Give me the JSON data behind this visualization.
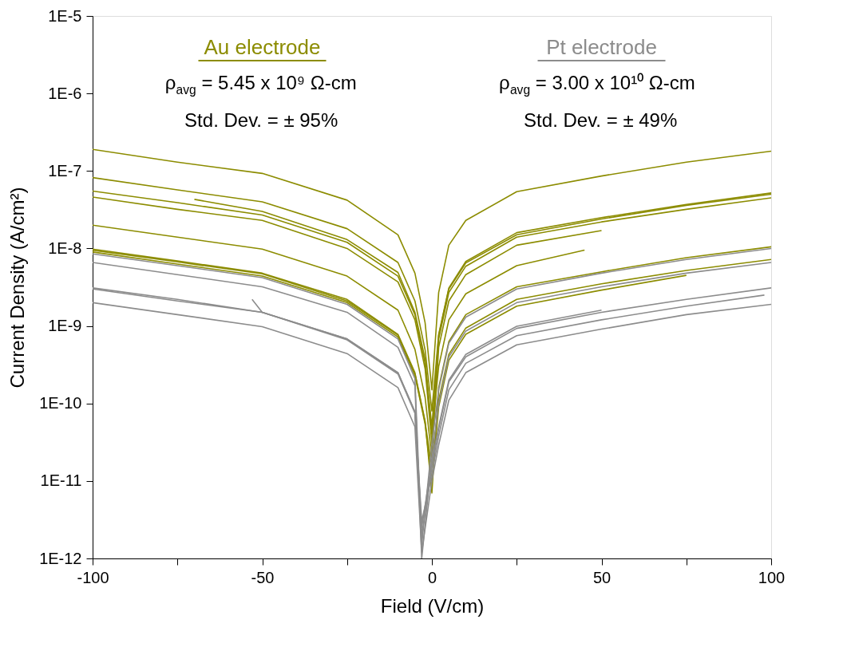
{
  "chart_data": {
    "type": "line",
    "xlabel": "Field (V/cm)",
    "ylabel": "Current Density (A/cm²)",
    "log": "y",
    "grid": false,
    "legend": "top",
    "line_style": "solid",
    "marker": "none",
    "xlim": [
      -100,
      100
    ],
    "xticks": [
      -100,
      {
        "value": -75,
        "label": null
      },
      -50,
      {
        "value": -25,
        "label": null
      },
      0,
      {
        "value": 25,
        "label": null
      },
      50,
      {
        "value": 75,
        "label": null
      },
      100
    ],
    "ylim": [
      1e-12,
      1e-05
    ],
    "yticks": [
      {
        "value": 1e-12,
        "label": "1E-12"
      },
      {
        "value": 1e-11,
        "label": "1E-11"
      },
      {
        "value": 1e-10,
        "label": "1E-10"
      },
      {
        "value": 1e-09,
        "label": "1E-9"
      },
      {
        "value": 1e-08,
        "label": "1E-8"
      },
      {
        "value": 1e-07,
        "label": "1E-7"
      },
      {
        "value": 1e-06,
        "label": "1E-6"
      },
      {
        "value": 1e-05,
        "label": "1E-5"
      }
    ],
    "annotations": [
      "ρ$_{avg}$ = 5.45 x 10⁹ Ω-cm",
      "Std. Dev. = ± 95%",
      "ρ$_{avg}$ = 3.00 x 10¹⁰ Ω-cm",
      "Std. Dev. = ± 49%"
    ],
    "x": [
      -100,
      -75,
      -50,
      -25,
      -10,
      -5,
      -2,
      0,
      2,
      5,
      10,
      25,
      50,
      75,
      100
    ],
    "series": [
      {
        "name": "Au electrode",
        "color": "#8c8c00",
        "values": [
          1.9e-07,
          1.3e-07,
          9.3e-08,
          4.2e-08,
          1.5e-08,
          4.8e-09,
          1.1e-09,
          1.5e-10,
          2.7e-09,
          1.1e-08,
          2.3e-08,
          5.4e-08,
          8.6e-08,
          1.3e-07,
          1.8e-07
        ]
      },
      {
        "color": "#8c8c00",
        "values": [
          8.2e-08,
          5.7e-08,
          4e-08,
          1.8e-08,
          6.6e-09,
          2.1e-09,
          4.9e-10,
          8e-11,
          7.8e-10,
          3.1e-09,
          6.8e-09,
          1.6e-08,
          2.5e-08,
          3.7e-08,
          5.2e-08
        ]
      },
      {
        "color": "#8c8c00",
        "values": [
          5.5e-08,
          3.9e-08,
          2.7e-08,
          1.2e-08,
          4.4e-09,
          1.4e-09,
          3.3e-10,
          5e-11,
          7.5e-10,
          3e-09,
          6.5e-09,
          1.5e-08,
          2.4e-08,
          3.6e-08,
          5e-08
        ]
      },
      {
        "color": "#8c8c00",
        "values": [
          4.6e-08,
          3.2e-08,
          2.3e-08,
          1e-08,
          3.7e-09,
          1.2e-09,
          2.8e-10,
          3e-11,
          6.8e-10,
          2.7e-09,
          5.9e-09,
          1.4e-08,
          2.2e-08,
          3.2e-08,
          4.5e-08
        ]
      },
      {
        "color": "#8c8c00",
        "x": [
          -100,
          -75,
          -50,
          -25,
          -10,
          -5,
          -2,
          0,
          2,
          5,
          10,
          25,
          50
        ],
        "values": [
          2e-08,
          1.4e-08,
          9.8e-09,
          4.4e-09,
          1.6e-09,
          5e-10,
          1.2e-10,
          2e-11,
          5.3e-10,
          2.1e-09,
          4.6e-09,
          1.1e-08,
          1.7e-08
        ]
      },
      {
        "color": "#8c8c00",
        "values": [
          9.8e-09,
          6.9e-09,
          4.8e-09,
          2.2e-09,
          7.8e-10,
          2.5e-10,
          5.9e-11,
          7e-12,
          1.6e-10,
          6.3e-10,
          1.4e-09,
          3.2e-09,
          5e-09,
          7.6e-09,
          1.05e-08
        ]
      },
      {
        "color": "#8c8c00",
        "values": [
          9.5e-09,
          6.7e-09,
          4.7e-09,
          2.1e-09,
          7.6e-10,
          2.4e-10,
          5.7e-11,
          1.5e-11,
          1.1e-10,
          4.3e-10,
          9.4e-10,
          2.2e-09,
          3.5e-09,
          5.2e-09,
          7.2e-09
        ]
      },
      {
        "color": "#8c8c00",
        "x": [
          -70,
          -50,
          -25,
          -10,
          -5,
          -2,
          0,
          2,
          5,
          10,
          25,
          45
        ],
        "values": [
          4.3e-08,
          3e-08,
          1.3e-08,
          4.9e-09,
          1.5e-09,
          3.7e-10,
          4e-11,
          3e-10,
          1.2e-09,
          2.6e-09,
          6e-09,
          9.5e-09
        ]
      },
      {
        "color": "#8c8c00",
        "x": [
          -100,
          -75,
          -50,
          -25,
          -10,
          -5,
          -2,
          0,
          2,
          5,
          10,
          25,
          50,
          75
        ],
        "values": [
          9e-09,
          6.3e-09,
          4.4e-09,
          2e-09,
          7.2e-10,
          2.3e-10,
          5.4e-11,
          1e-11,
          9e-11,
          3.6e-10,
          7.8e-10,
          1.8e-09,
          2.9e-09,
          4.5e-09
        ]
      },
      {
        "name": "Pt electrode",
        "color": "#8c8c8c",
        "x": [
          -100,
          -75,
          -50,
          -25,
          -10,
          -5,
          -3,
          0,
          2,
          5,
          10,
          25,
          50,
          75,
          100
        ],
        "values": [
          8.5e-09,
          6e-09,
          4.2e-09,
          1.9e-09,
          6.8e-10,
          2.1e-10,
          1.5e-12,
          3e-11,
          1.5e-10,
          6e-10,
          1.3e-09,
          3e-09,
          4.8e-09,
          7.2e-09,
          1e-08
        ]
      },
      {
        "color": "#8c8c8c",
        "x": [
          -100,
          -75,
          -50,
          -25,
          -10,
          -5,
          -3,
          0,
          2,
          5,
          10,
          25,
          50,
          75,
          100
        ],
        "values": [
          6.6e-09,
          4.6e-09,
          3.2e-09,
          1.5e-09,
          5.3e-10,
          1.7e-10,
          1e-12,
          2e-11,
          9.9e-11,
          4e-10,
          8.6e-10,
          2e-09,
          3.2e-09,
          4.8e-09,
          6.6e-09
        ]
      },
      {
        "color": "#8c8c8c",
        "x": [
          -100,
          -75,
          -50,
          -25,
          -10,
          -5,
          -3,
          0,
          2,
          5,
          10,
          25,
          50,
          75,
          100
        ],
        "values": [
          3.1e-09,
          2.2e-09,
          1.5e-09,
          6.8e-10,
          2.5e-10,
          7.8e-11,
          2e-12,
          1.5e-11,
          4.7e-11,
          1.9e-10,
          4e-10,
          9.3e-10,
          1.5e-09,
          2.2e-09,
          3.1e-09
        ]
      },
      {
        "color": "#8c8c8c",
        "x": [
          -100,
          -75,
          -50,
          -25,
          -10,
          -5,
          -3,
          0,
          2,
          5,
          10,
          25,
          50,
          75,
          100
        ],
        "values": [
          2e-09,
          1.4e-09,
          9.8e-10,
          4.4e-10,
          1.6e-10,
          5e-11,
          1.2e-12,
          1e-11,
          2.9e-11,
          1.1e-10,
          2.5e-10,
          5.7e-10,
          9.1e-10,
          1.4e-09,
          1.9e-09
        ]
      },
      {
        "color": "#8c8c8c",
        "x": [
          -53,
          -50,
          -25,
          -10,
          -5,
          -3,
          0,
          2,
          5,
          10,
          25,
          50,
          75,
          98
        ],
        "values": [
          2.2e-09,
          1.5e-09,
          6.8e-10,
          2.5e-10,
          7.8e-11,
          3e-12,
          1.2e-11,
          3.8e-11,
          1.5e-10,
          3.3e-10,
          7.5e-10,
          1.2e-09,
          1.8e-09,
          2.5e-09
        ]
      },
      {
        "color": "#8c8c8c",
        "x": [
          -100,
          -75,
          -50,
          -25,
          -10,
          -5,
          -3,
          0,
          2,
          5,
          10,
          25,
          50
        ],
        "values": [
          3e-09,
          2.1e-09,
          1.5e-09,
          6.6e-10,
          2.4e-10,
          7.5e-11,
          2.5e-12,
          1.8e-11,
          5e-11,
          2e-10,
          4.3e-10,
          9.9e-10,
          1.6e-09
        ]
      }
    ]
  }
}
